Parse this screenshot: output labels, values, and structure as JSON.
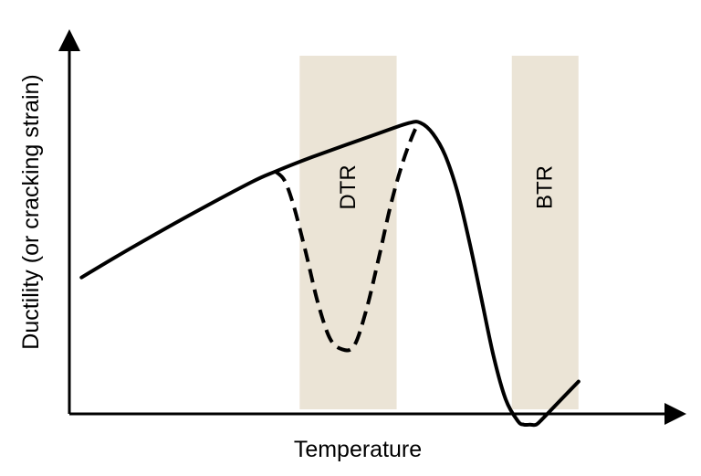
{
  "chart_data": {
    "type": "line",
    "title": "",
    "xlabel": "Temperature",
    "ylabel": "Ductility (or cracking strain)",
    "xlim": [
      0,
      100
    ],
    "ylim": [
      0,
      100
    ],
    "ticks": "none",
    "grid": false,
    "colors": {
      "band": "#ebe4d6",
      "curve": "#000000"
    },
    "bands": [
      {
        "label": "DTR",
        "x_start": 38,
        "x_end": 54
      },
      {
        "label": "BTR",
        "x_start": 73,
        "x_end": 84
      }
    ],
    "series": [
      {
        "style": "solid",
        "x": [
          2,
          10,
          20,
          30,
          34,
          40,
          50,
          56,
          58,
          60,
          62,
          64,
          66,
          68,
          70,
          72,
          74,
          75,
          76,
          77,
          78,
          80,
          84
        ],
        "y": [
          38,
          46,
          55.5,
          64.5,
          67.5,
          71.5,
          77.5,
          81,
          81,
          78,
          72,
          62,
          48,
          32,
          16,
          4,
          -2,
          -3,
          -3,
          -3,
          -1.5,
          2,
          9
        ]
      },
      {
        "style": "dashed",
        "x": [
          34,
          35.5,
          37,
          39,
          41,
          43,
          45,
          47,
          49,
          51,
          53,
          55,
          57,
          58
        ],
        "y": [
          67.5,
          65,
          58,
          45,
          31,
          21,
          18,
          19,
          29,
          43,
          58,
          70,
          79,
          81
        ]
      }
    ]
  }
}
